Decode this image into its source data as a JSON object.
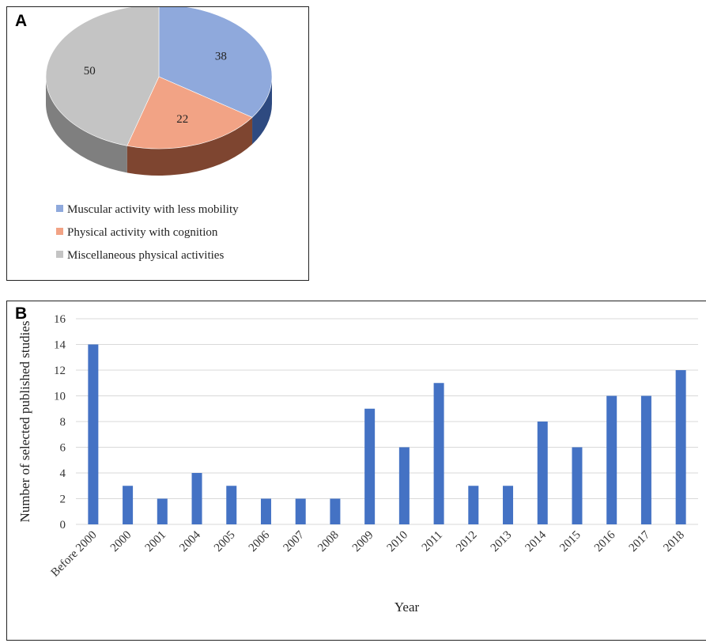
{
  "panels": {
    "a_label": "A",
    "b_label": "B"
  },
  "chart_data": [
    {
      "type": "pie",
      "labels": [
        "Muscular activity with less mobility",
        "Physical activity with cognition",
        "Miscellaneous physical activities"
      ],
      "values": [
        38,
        22,
        50
      ],
      "colors": [
        "#8fa9dc",
        "#f2a385",
        "#c4c4c4"
      ],
      "side_colors": [
        "#2e4a80",
        "#7e4530",
        "#7f7f7f"
      ],
      "legend": "bottom",
      "style": "3d"
    },
    {
      "type": "bar",
      "categories": [
        "Before 2000",
        "2000",
        "2001",
        "2004",
        "2005",
        "2006",
        "2007",
        "2008",
        "2009",
        "2010",
        "2011",
        "2012",
        "2013",
        "2014",
        "2015",
        "2016",
        "2017",
        "2018"
      ],
      "values": [
        14,
        3,
        2,
        4,
        3,
        2,
        2,
        2,
        9,
        6,
        11,
        3,
        3,
        8,
        6,
        10,
        10,
        12
      ],
      "xlabel": "Year",
      "ylabel": "Number of selected published studies",
      "ylim": [
        0,
        16
      ],
      "yticks": [
        0,
        2,
        4,
        6,
        8,
        10,
        12,
        14,
        16
      ],
      "bar_color": "#4472c4",
      "grid": true
    }
  ]
}
